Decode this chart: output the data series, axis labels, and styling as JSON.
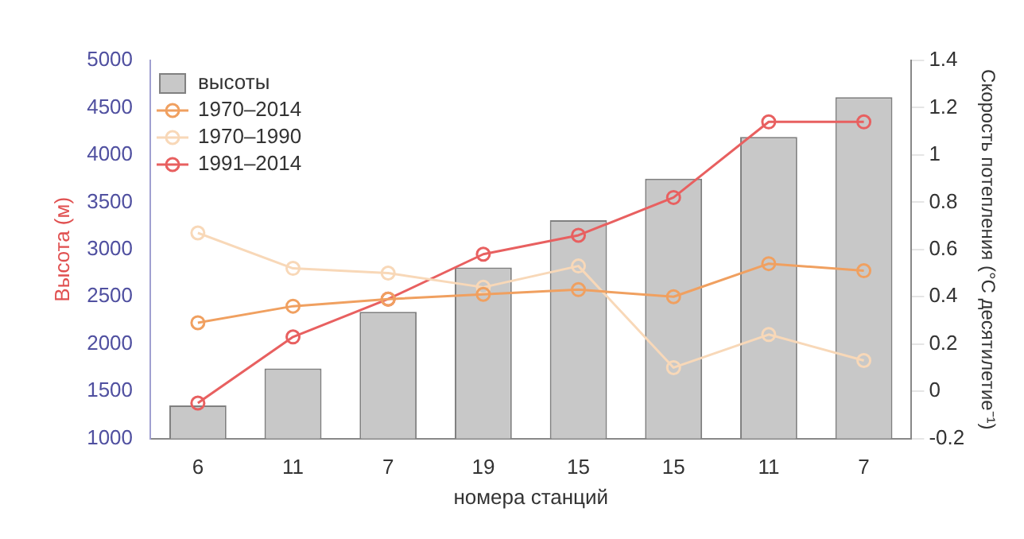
{
  "chart_data": {
    "type": "bar",
    "xlabel": "номера станций",
    "ylabel": "Высота (м)",
    "y2label": "Скорость потепления (°С десятилетие⁻¹)",
    "categories": [
      "6",
      "11",
      "7",
      "19",
      "15",
      "15",
      "11",
      "7"
    ],
    "series": [
      {
        "name": "высоты",
        "color": "#c8c8c8",
        "values": [
          1350,
          1740,
          2340,
          2810,
          3310,
          3750,
          4190,
          4610
        ]
      },
      {
        "name": "1970–2014",
        "type": "line",
        "axis": "y2",
        "color": "#f0a060",
        "values": [
          0.29,
          0.36,
          0.39,
          0.41,
          0.43,
          0.4,
          0.54,
          0.51
        ]
      },
      {
        "name": "1970–1990",
        "type": "line",
        "axis": "y2",
        "color": "#f8d8b8",
        "values": [
          0.67,
          0.52,
          0.5,
          0.44,
          0.53,
          0.1,
          0.24,
          0.13
        ]
      },
      {
        "name": "1991–2014",
        "type": "line",
        "axis": "y2",
        "color": "#e86060",
        "values": [
          -0.05,
          0.23,
          0.39,
          0.58,
          0.66,
          0.82,
          1.14,
          1.14
        ]
      }
    ],
    "ylim": [
      1000,
      5000
    ],
    "yticks": [
      1000,
      1500,
      2000,
      2500,
      3000,
      3500,
      4000,
      4500,
      5000
    ],
    "y2lim": [
      -0.2,
      1.4
    ],
    "y2ticks": [
      -0.2,
      0,
      0.2,
      0.4,
      0.6,
      0.8,
      1,
      1.2,
      1.4
    ],
    "grid": false,
    "legend": "top left",
    "marker": "circle",
    "line_style": "solid"
  }
}
